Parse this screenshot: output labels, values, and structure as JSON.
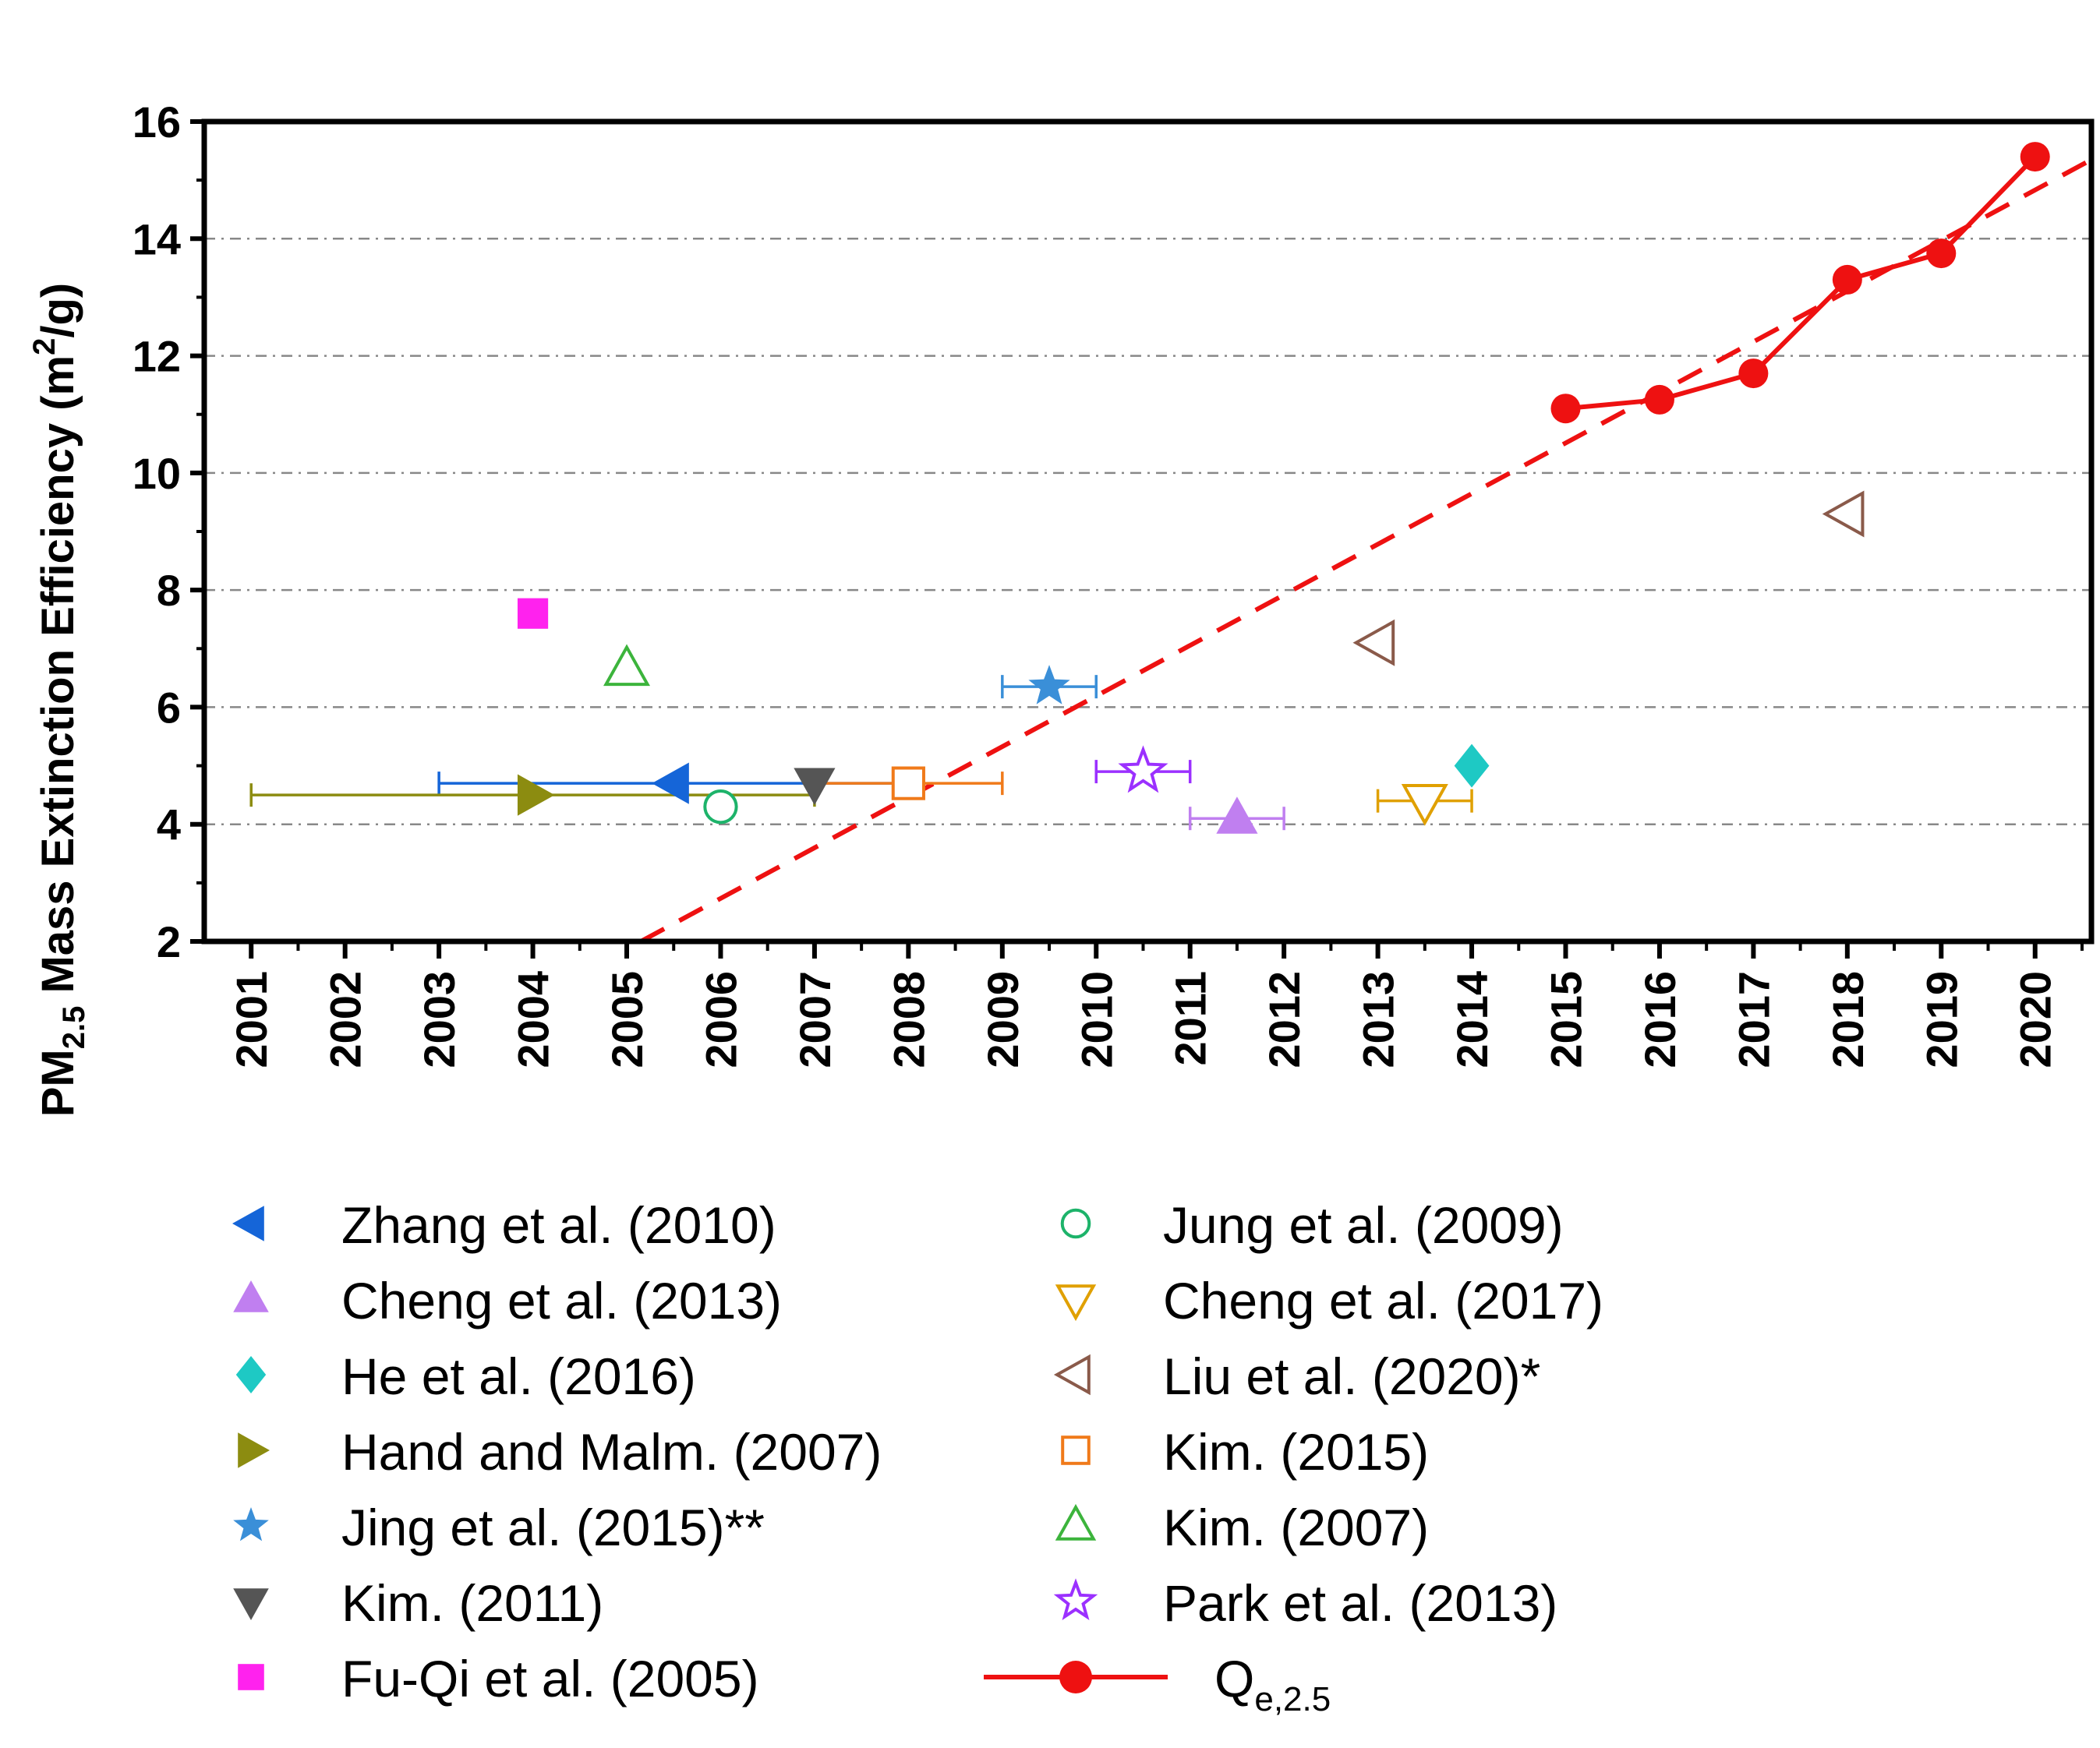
{
  "chart_data": {
    "type": "scatter",
    "title": "",
    "ylabel": {
      "prefix": "PM",
      "subscript": "2.5",
      "middle": " Mass Extinction Efficiency (m",
      "superscript": "2",
      "suffix": "/g)"
    },
    "xlabel": "",
    "xlim": [
      2000.5,
      2020.6
    ],
    "ylim": [
      2,
      16
    ],
    "grid": "horizontal dash-dot at major y ticks",
    "x_ticks": [
      "2001",
      "2002",
      "2003",
      "2004",
      "2005",
      "2006",
      "2007",
      "2008",
      "2009",
      "2010",
      "2011",
      "2012",
      "2013",
      "2014",
      "2015",
      "2016",
      "2017",
      "2018",
      "2019",
      "2020"
    ],
    "y_ticks": [
      "2",
      "4",
      "6",
      "8",
      "10",
      "12",
      "14",
      "16"
    ],
    "studies": [
      {
        "name": "Zhang et al. (2010)",
        "marker": "triangle-left",
        "filled": true,
        "color": "#1565d8",
        "x": 2005.5,
        "y": 4.7,
        "xerr": [
          2003,
          2008
        ]
      },
      {
        "name": "Jung et al. (2009)",
        "marker": "circle",
        "filled": false,
        "color": "#1db36a",
        "x": 2006,
        "y": 4.3,
        "xerr": null
      },
      {
        "name": "Cheng et al. (2013)",
        "marker": "triangle-up",
        "filled": true,
        "color": "#c07ff0",
        "x": 2011.5,
        "y": 4.1,
        "xerr": [
          2011,
          2012
        ]
      },
      {
        "name": "Cheng et al. (2017)",
        "marker": "triangle-down",
        "filled": false,
        "color": "#e0a000",
        "x": 2013.5,
        "y": 4.4,
        "xerr": [
          2013,
          2014
        ]
      },
      {
        "name": "He et al. (2016)",
        "marker": "diamond",
        "filled": true,
        "color": "#1ec9c4",
        "x": 2014,
        "y": 5.0,
        "xerr": null
      },
      {
        "name": "Liu et al. (2020)*",
        "marker": "triangle-left",
        "filled": false,
        "color": "#8a5a4a",
        "points": [
          {
            "x": 2013,
            "y": 7.1
          },
          {
            "x": 2018,
            "y": 9.3
          }
        ],
        "xerr": null
      },
      {
        "name": "Hand and Malm. (2007)",
        "marker": "triangle-right",
        "filled": true,
        "color": "#8c8c10",
        "x": 2004,
        "y": 4.5,
        "xerr": [
          2001,
          2007
        ]
      },
      {
        "name": "Kim. (2015)",
        "marker": "square",
        "filled": false,
        "color": "#f07a1a",
        "x": 2008,
        "y": 4.7,
        "xerr": [
          2007,
          2009
        ]
      },
      {
        "name": "Jing et al. (2015)**",
        "marker": "star",
        "filled": true,
        "color": "#3a8fd8",
        "x": 2009.5,
        "y": 6.35,
        "xerr": [
          2009,
          2010
        ]
      },
      {
        "name": "Kim. (2007)",
        "marker": "triangle-up",
        "filled": false,
        "color": "#3cb43c",
        "x": 2005,
        "y": 6.65,
        "xerr": null
      },
      {
        "name": "Kim. (2011)",
        "marker": "triangle-down",
        "filled": true,
        "color": "#555555",
        "x": 2007,
        "y": 4.7,
        "xerr": null
      },
      {
        "name": "Park et al. (2013)",
        "marker": "star",
        "filled": false,
        "color": "#9b30ff",
        "x": 2010.5,
        "y": 4.9,
        "xerr": [
          2010,
          2011
        ]
      },
      {
        "name": "Fu-Qi et al. (2005)",
        "marker": "square",
        "filled": true,
        "color": "#ff22ee",
        "x": 2004,
        "y": 7.6,
        "xerr": null
      }
    ],
    "series": [
      {
        "name": "Q_e,2.5",
        "label_main": "Q",
        "label_sub": "e,2.5",
        "type": "line+markers",
        "color": "#ee1111",
        "x": [
          2015,
          2016,
          2017,
          2018,
          2019,
          2020
        ],
        "y": [
          11.1,
          11.25,
          11.7,
          13.3,
          13.75,
          15.4
        ]
      }
    ],
    "trendline": {
      "style": "dashed",
      "color": "#ee1111",
      "from": {
        "x": 2005.15,
        "y": 2.0
      },
      "to": {
        "x": 2020.6,
        "y": 15.35
      }
    },
    "legend": {
      "placement": "below plot, two columns",
      "left_column": [
        "Zhang et al. (2010)",
        "Cheng et al. (2013)",
        "He et al. (2016)",
        "Hand and Malm. (2007)",
        "Jing et al. (2015)**",
        "Kim. (2011)",
        "Fu-Qi et al. (2005)"
      ],
      "right_column": [
        "Jung et al. (2009)",
        "Cheng et al. (2017)",
        "Liu et al. (2020)*",
        "Kim. (2015)",
        "Kim. (2007)",
        "Park et al. (2013)",
        "Q_e,2.5"
      ]
    }
  }
}
